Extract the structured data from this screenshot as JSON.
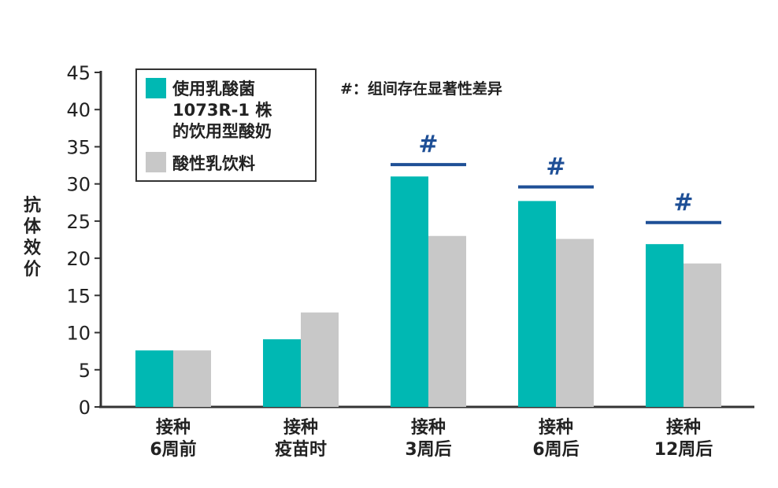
{
  "chart_data": {
    "type": "bar",
    "ylabel": "抗体效价",
    "ylim": [
      0,
      45
    ],
    "yticks": [
      "0",
      "5",
      "10",
      "15",
      "20",
      "25",
      "30",
      "35",
      "40",
      "45"
    ],
    "categories": [
      [
        "接种",
        "6周前"
      ],
      [
        "接种",
        "疫苗时"
      ],
      [
        "接种",
        "3周后"
      ],
      [
        "接种",
        "6周后"
      ],
      [
        "接种",
        "12周后"
      ]
    ],
    "series": [
      {
        "name_lines": [
          "使用乳酸菌",
          "1073R-1 株",
          "的饮用型酸奶"
        ],
        "color": "#00b8b3",
        "values": [
          7.6,
          9.1,
          31.0,
          27.7,
          21.9
        ]
      },
      {
        "name_lines": [
          "酸性乳饮料"
        ],
        "color": "#c8c8c8",
        "values": [
          7.6,
          12.7,
          23.0,
          22.6,
          19.3
        ]
      }
    ],
    "significance": {
      "symbol": "#",
      "categories": [
        2,
        3,
        4
      ],
      "line_value": [
        32.6,
        29.6,
        24.8
      ]
    },
    "note": "#：组间存在显著性差异",
    "legend_position": "top-left",
    "grid": false,
    "colors": {
      "axis": "#333333",
      "sig": "#1e4f96"
    }
  }
}
